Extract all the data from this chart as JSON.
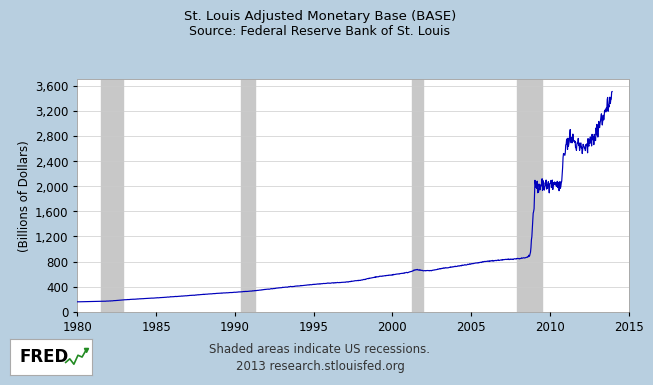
{
  "title_line1": "St. Louis Adjusted Monetary Base (BASE)",
  "title_line2": "Source: Federal Reserve Bank of St. Louis",
  "ylabel": "(Billions of Dollars)",
  "xlabel_ticks": [
    1980,
    1985,
    1990,
    1995,
    2000,
    2005,
    2010,
    2015
  ],
  "yticks": [
    0,
    400,
    800,
    1200,
    1600,
    2000,
    2400,
    2800,
    3200,
    3600
  ],
  "xlim": [
    1980,
    2015
  ],
  "ylim": [
    0,
    3700
  ],
  "footer_line1": "Shaded areas indicate US recessions.",
  "footer_line2": "2013 research.stlouisfed.org",
  "recession_bands": [
    [
      1981.5,
      1982.917
    ],
    [
      1990.417,
      1991.25
    ],
    [
      2001.25,
      2001.917
    ],
    [
      2007.917,
      2009.5
    ]
  ],
  "bg_color": "#b8cfe0",
  "plot_bg_color": "#ffffff",
  "line_color": "#0000bb",
  "recession_color": "#c8c8c8",
  "title_color": "#000000",
  "fred_box_color": "#ffffff",
  "fred_text_color": "#000000",
  "keypoints": [
    [
      1980.0,
      160
    ],
    [
      1981.0,
      165
    ],
    [
      1981.5,
      168
    ],
    [
      1982.0,
      172
    ],
    [
      1983.0,
      192
    ],
    [
      1984.0,
      208
    ],
    [
      1985.0,
      222
    ],
    [
      1986.0,
      240
    ],
    [
      1987.0,
      258
    ],
    [
      1988.0,
      278
    ],
    [
      1989.0,
      296
    ],
    [
      1990.0,
      312
    ],
    [
      1991.0,
      330
    ],
    [
      1992.0,
      358
    ],
    [
      1993.0,
      388
    ],
    [
      1994.0,
      412
    ],
    [
      1995.0,
      438
    ],
    [
      1996.0,
      458
    ],
    [
      1997.0,
      472
    ],
    [
      1998.0,
      505
    ],
    [
      1999.0,
      558
    ],
    [
      2000.0,
      590
    ],
    [
      2001.0,
      628
    ],
    [
      2001.5,
      672
    ],
    [
      2002.0,
      655
    ],
    [
      2002.5,
      658
    ],
    [
      2003.0,
      685
    ],
    [
      2004.0,
      722
    ],
    [
      2005.0,
      762
    ],
    [
      2006.0,
      805
    ],
    [
      2007.0,
      828
    ],
    [
      2007.5,
      838
    ],
    [
      2008.0,
      848
    ],
    [
      2008.5,
      862
    ],
    [
      2008.65,
      880
    ],
    [
      2008.75,
      920
    ],
    [
      2008.83,
      1100
    ],
    [
      2008.92,
      1500
    ],
    [
      2009.0,
      1680
    ],
    [
      2009.05,
      2020
    ],
    [
      2009.1,
      2100
    ],
    [
      2009.15,
      1980
    ],
    [
      2009.2,
      2050
    ],
    [
      2009.25,
      1920
    ],
    [
      2009.3,
      2000
    ],
    [
      2009.4,
      1980
    ],
    [
      2009.5,
      2020
    ],
    [
      2009.6,
      2000
    ],
    [
      2009.7,
      2010
    ],
    [
      2009.8,
      2030
    ],
    [
      2010.0,
      2025
    ],
    [
      2010.2,
      2040
    ],
    [
      2010.4,
      2060
    ],
    [
      2010.6,
      2010
    ],
    [
      2010.7,
      2020
    ],
    [
      2010.75,
      2040
    ],
    [
      2010.8,
      2320
    ],
    [
      2011.0,
      2620
    ],
    [
      2011.1,
      2680
    ],
    [
      2011.2,
      2710
    ],
    [
      2011.3,
      2690
    ],
    [
      2011.4,
      2720
    ],
    [
      2011.5,
      2700
    ],
    [
      2011.6,
      2660
    ],
    [
      2011.7,
      2640
    ],
    [
      2011.8,
      2650
    ],
    [
      2012.0,
      2630
    ],
    [
      2012.1,
      2610
    ],
    [
      2012.2,
      2600
    ],
    [
      2012.3,
      2620
    ],
    [
      2012.4,
      2680
    ],
    [
      2012.5,
      2700
    ],
    [
      2012.6,
      2720
    ],
    [
      2012.7,
      2750
    ],
    [
      2012.8,
      2790
    ],
    [
      2013.0,
      2880
    ],
    [
      2013.2,
      3000
    ],
    [
      2013.4,
      3120
    ],
    [
      2013.6,
      3280
    ],
    [
      2013.8,
      3420
    ],
    [
      2013.95,
      3500
    ]
  ]
}
